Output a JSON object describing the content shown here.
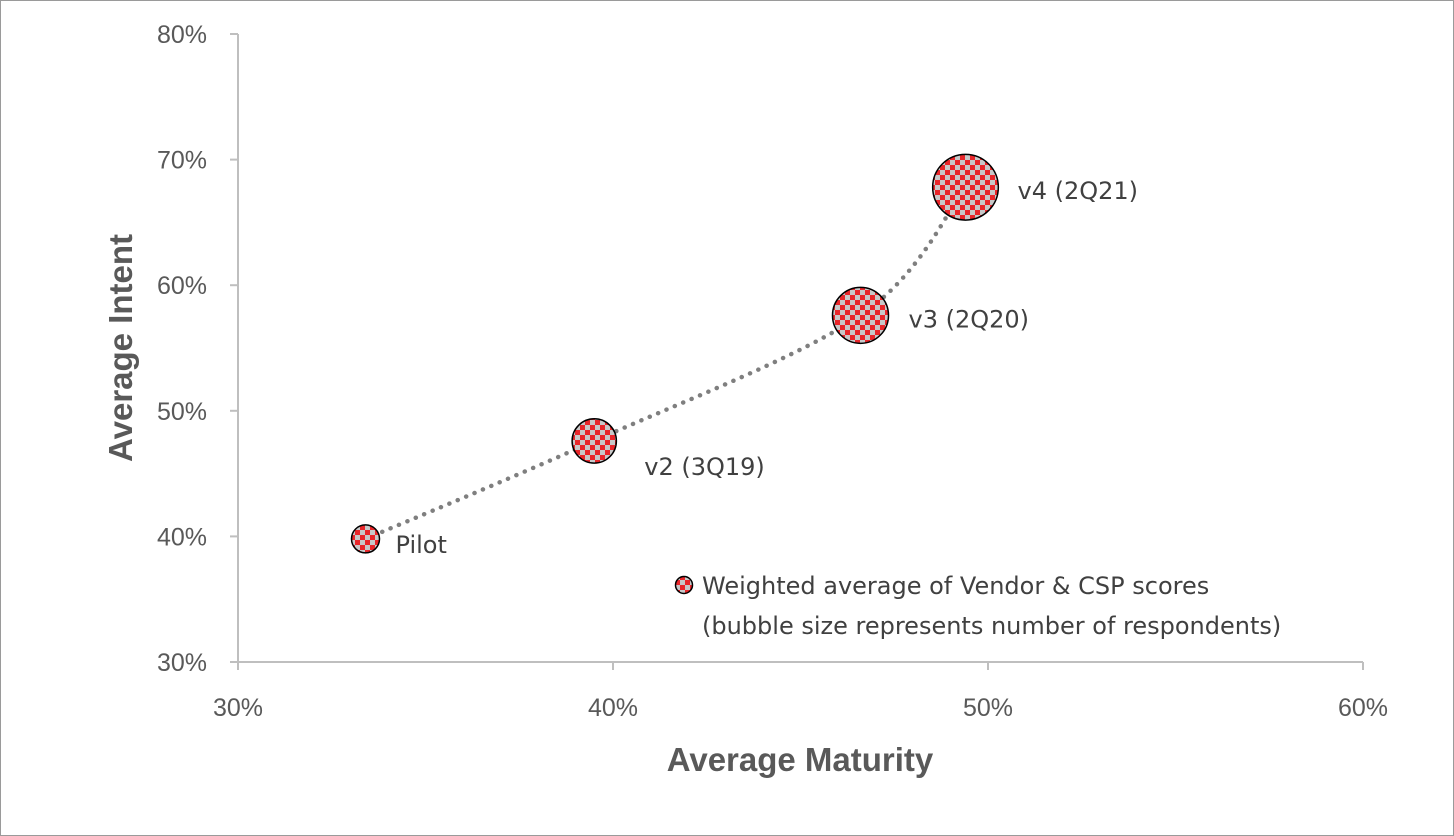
{
  "chart_data": {
    "type": "scatter",
    "xlabel": "Average Maturity",
    "ylabel": "Average Intent",
    "xlim": [
      0.3,
      0.6
    ],
    "ylim": [
      0.3,
      0.8
    ],
    "xticks": [
      0.3,
      0.4,
      0.5,
      0.6
    ],
    "yticks": [
      0.3,
      0.4,
      0.5,
      0.6,
      0.7,
      0.8
    ],
    "xtick_labels": [
      "30%",
      "40%",
      "50%",
      "60%"
    ],
    "ytick_labels": [
      "30%",
      "40%",
      "50%",
      "60%",
      "70%",
      "80%"
    ],
    "grid": false,
    "trendline": "dotted",
    "legend_position": "bottom-right",
    "series": [
      {
        "name": "Weighted average of Vendor & CSP scores",
        "name_line2": "(bubble size represents number of respondents)",
        "marker": "red-checkered-bubble",
        "points": [
          {
            "label": "Pilot",
            "x": 0.334,
            "y": 0.398,
            "size": 1
          },
          {
            "label": "v2 (3Q19)",
            "x": 0.395,
            "y": 0.476,
            "size": 2.5
          },
          {
            "label": "v3 (2Q20)",
            "x": 0.466,
            "y": 0.576,
            "size": 4
          },
          {
            "label": "v4 (2Q21)",
            "x": 0.494,
            "y": 0.678,
            "size": 5.5
          }
        ]
      }
    ]
  },
  "colors": {
    "marker_fill": "#e8262a",
    "marker_check": "#c8c8c8",
    "trend": "#7f7f7f",
    "axis": "#bfbfbf",
    "text": "#595959"
  }
}
